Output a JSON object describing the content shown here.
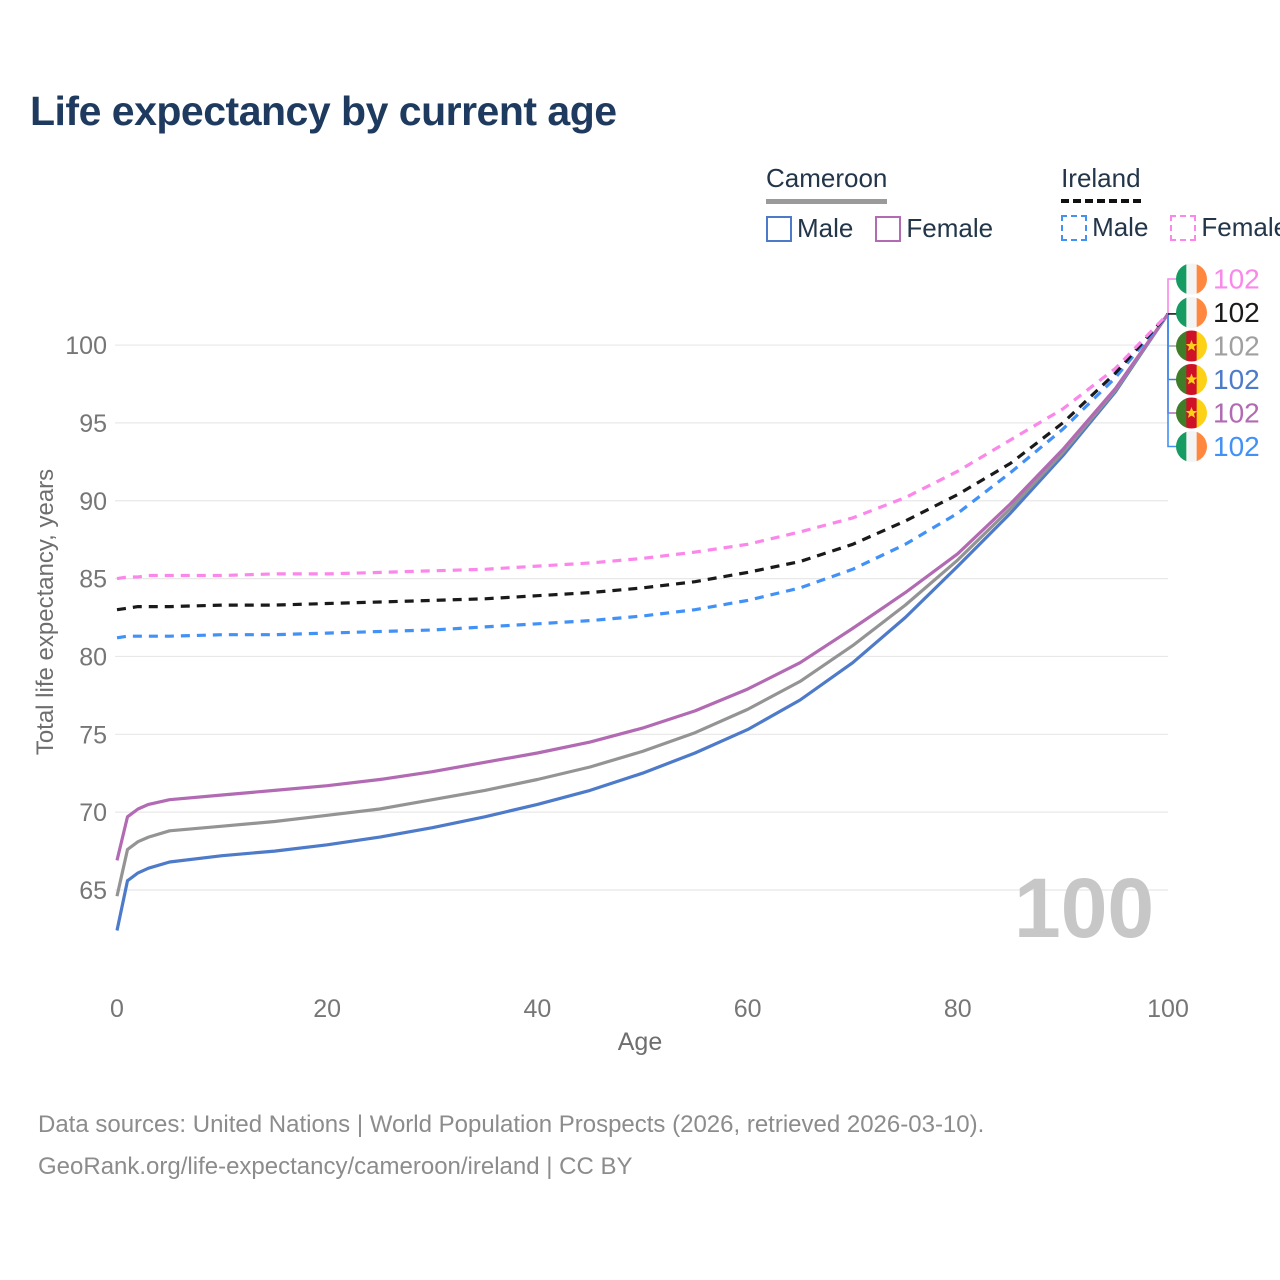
{
  "title": "Life expectancy by current age",
  "legend": {
    "groups": [
      {
        "name": "Cameroon",
        "line_style": "solid",
        "underline_color": "#9a9a9a",
        "items": [
          {
            "label": "Male",
            "color": "#4d7ac9",
            "dashed": false
          },
          {
            "label": "Female",
            "color": "#b26ab3",
            "dashed": false
          }
        ]
      },
      {
        "name": "Ireland",
        "line_style": "dashed",
        "underline_color": "#111111",
        "items": [
          {
            "label": "Male",
            "color": "#4191f7",
            "dashed": true
          },
          {
            "label": "Female",
            "color": "#fb87ea",
            "dashed": true
          }
        ]
      }
    ]
  },
  "chart_data": {
    "type": "line",
    "title": "Life expectancy by current age",
    "xlabel": "Age",
    "ylabel": "Total life expectancy, years",
    "xlim": [
      0,
      100
    ],
    "ylim": [
      65,
      100
    ],
    "xticks": [
      0,
      20,
      40,
      60,
      80,
      100
    ],
    "yticks": [
      65,
      70,
      75,
      80,
      85,
      90,
      95,
      100
    ],
    "grid": "horizontal-only",
    "legend_position": "top-right",
    "watermark": "100",
    "x": [
      0,
      1,
      2,
      3,
      5,
      10,
      15,
      20,
      25,
      30,
      35,
      40,
      45,
      50,
      55,
      60,
      65,
      70,
      75,
      80,
      85,
      90,
      95,
      100
    ],
    "series": [
      {
        "name": "Cameroon Male",
        "country": "Cameroon",
        "sex": "Male",
        "color": "#4d7ac9",
        "dashed": false,
        "values": [
          62.4,
          65.6,
          66.1,
          66.4,
          66.8,
          67.2,
          67.5,
          67.9,
          68.4,
          69.0,
          69.7,
          70.5,
          71.4,
          72.5,
          73.8,
          75.3,
          77.2,
          79.6,
          82.5,
          85.8,
          89.2,
          92.9,
          97.0,
          102
        ]
      },
      {
        "name": "Cameroon",
        "country": "Cameroon",
        "sex": "Both",
        "color": "#949494",
        "dashed": false,
        "values": [
          64.6,
          67.6,
          68.1,
          68.4,
          68.8,
          69.1,
          69.4,
          69.8,
          70.2,
          70.8,
          71.4,
          72.1,
          72.9,
          73.9,
          75.1,
          76.6,
          78.4,
          80.7,
          83.3,
          86.2,
          89.5,
          93.1,
          97.1,
          102
        ]
      },
      {
        "name": "Cameroon Female",
        "country": "Cameroon",
        "sex": "Female",
        "color": "#b26ab3",
        "dashed": false,
        "values": [
          66.9,
          69.7,
          70.2,
          70.5,
          70.8,
          71.1,
          71.4,
          71.7,
          72.1,
          72.6,
          73.2,
          73.8,
          74.5,
          75.4,
          76.5,
          77.9,
          79.6,
          81.8,
          84.1,
          86.6,
          89.8,
          93.3,
          97.2,
          102
        ]
      },
      {
        "name": "Ireland Male",
        "country": "Ireland",
        "sex": "Male",
        "color": "#4191f7",
        "dashed": true,
        "values": [
          81.2,
          81.3,
          81.3,
          81.3,
          81.3,
          81.4,
          81.4,
          81.5,
          81.6,
          81.7,
          81.9,
          82.1,
          82.3,
          82.6,
          83.0,
          83.6,
          84.4,
          85.6,
          87.2,
          89.2,
          91.8,
          94.6,
          97.9,
          102
        ]
      },
      {
        "name": "Ireland",
        "country": "Ireland",
        "sex": "Both",
        "color": "#1a1a1a",
        "dashed": true,
        "values": [
          83.0,
          83.1,
          83.2,
          83.2,
          83.2,
          83.3,
          83.3,
          83.4,
          83.5,
          83.6,
          83.7,
          83.9,
          84.1,
          84.4,
          84.8,
          85.4,
          86.1,
          87.2,
          88.7,
          90.4,
          92.4,
          95.0,
          98.2,
          102
        ]
      },
      {
        "name": "Ireland Female",
        "country": "Ireland",
        "sex": "Female",
        "color": "#fb87ea",
        "dashed": true,
        "values": [
          85.0,
          85.1,
          85.1,
          85.2,
          85.2,
          85.2,
          85.3,
          85.3,
          85.4,
          85.5,
          85.6,
          85.8,
          86.0,
          86.3,
          86.7,
          87.2,
          88.0,
          88.9,
          90.2,
          91.9,
          93.9,
          95.9,
          98.5,
          102
        ]
      }
    ],
    "end_labels": [
      {
        "series": "Ireland Female",
        "flag": "ireland",
        "value": "102",
        "color": "#fb87ea"
      },
      {
        "series": "Ireland",
        "flag": "ireland",
        "value": "102",
        "color": "#1a1a1a"
      },
      {
        "series": "Cameroon",
        "flag": "cameroon",
        "value": "102",
        "color": "#a0a0a0"
      },
      {
        "series": "Cameroon Male",
        "flag": "cameroon",
        "value": "102",
        "color": "#4d7ac9"
      },
      {
        "series": "Cameroon Female",
        "flag": "cameroon",
        "value": "102",
        "color": "#b26ab3"
      },
      {
        "series": "Ireland Male",
        "flag": "ireland",
        "value": "102",
        "color": "#4191f7"
      }
    ],
    "colors": {
      "grid": "#e8e8e8",
      "tick_text": "#767676",
      "title": "#1e3a5f",
      "watermark": "#c7c7c7",
      "flag_ireland": [
        "#169b62",
        "#f4f4f4",
        "#ff883e"
      ],
      "flag_cameroon": [
        "#3f7d28",
        "#ce1126",
        "#fcd116"
      ],
      "flag_star": "#fcd116"
    }
  },
  "footer": {
    "line1": "Data sources: United Nations | World Population Prospects (2026, retrieved 2026-03-10).",
    "line2": "GeoRank.org/life-expectancy/cameroon/ireland | CC BY"
  }
}
